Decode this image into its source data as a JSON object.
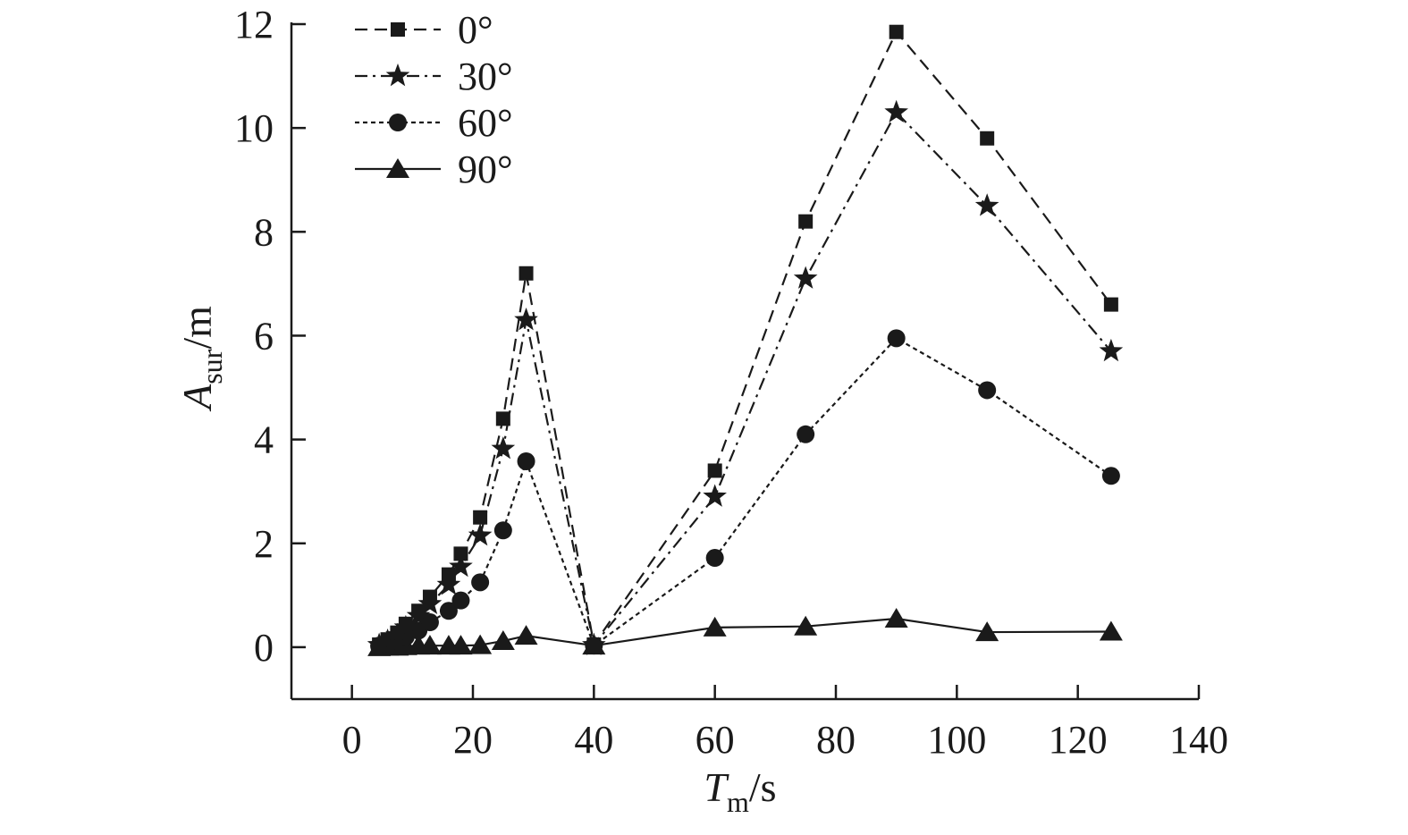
{
  "chart_data": {
    "type": "line",
    "xlabel": {
      "main": "T",
      "sub": "m",
      "unit": "/s"
    },
    "ylabel": {
      "main": "A",
      "sub": "sur",
      "unit": "/m"
    },
    "xlim": [
      -10,
      140
    ],
    "ylim": [
      -1,
      12
    ],
    "xticks": [
      0,
      20,
      40,
      60,
      80,
      100,
      120,
      140
    ],
    "yticks": [
      0,
      2,
      4,
      6,
      8,
      10,
      12
    ],
    "grid": false,
    "legend_position": "top-left",
    "colors": {
      "ink": "#1a1a1a",
      "background": "#ffffff"
    },
    "series": [
      {
        "name": "0°",
        "marker": "square",
        "dash": "dashed",
        "x": [
          4.5,
          5.9,
          7.5,
          8.9,
          11.0,
          12.9,
          16.0,
          18.0,
          21.2,
          25.0,
          28.8,
          40.0,
          60.0,
          75.0,
          90.0,
          105.0,
          125.5
        ],
        "y": [
          0.05,
          0.15,
          0.28,
          0.45,
          0.7,
          0.97,
          1.4,
          1.8,
          2.5,
          4.4,
          7.2,
          0.05,
          3.4,
          8.2,
          11.85,
          9.8,
          6.6
        ]
      },
      {
        "name": "30°",
        "marker": "star",
        "dash": "dashdot",
        "x": [
          4.5,
          5.9,
          7.5,
          8.9,
          11.0,
          12.9,
          16.0,
          18.0,
          21.2,
          25.0,
          28.8,
          40.0,
          60.0,
          75.0,
          90.0,
          105.0,
          125.5
        ],
        "y": [
          0.04,
          0.12,
          0.23,
          0.38,
          0.6,
          0.83,
          1.2,
          1.55,
          2.15,
          3.82,
          6.3,
          0.04,
          2.9,
          7.1,
          10.3,
          8.5,
          5.7
        ]
      },
      {
        "name": "60°",
        "marker": "circle",
        "dash": "dotted",
        "x": [
          4.5,
          5.9,
          7.5,
          8.9,
          11.0,
          12.9,
          16.0,
          18.0,
          21.2,
          25.0,
          28.8,
          40.0,
          60.0,
          75.0,
          90.0,
          105.0,
          125.5
        ],
        "y": [
          0.02,
          0.07,
          0.12,
          0.2,
          0.32,
          0.48,
          0.7,
          0.9,
          1.25,
          2.25,
          3.58,
          0.03,
          1.72,
          4.1,
          5.95,
          4.95,
          3.3
        ]
      },
      {
        "name": "90°",
        "marker": "triangle",
        "dash": "solid",
        "x": [
          4.5,
          5.9,
          7.5,
          8.9,
          11.0,
          12.9,
          16.0,
          18.0,
          21.2,
          25.0,
          28.8,
          40.0,
          60.0,
          75.0,
          90.0,
          105.0,
          125.5
        ],
        "y": [
          0.0,
          0.01,
          0.01,
          0.02,
          0.03,
          0.03,
          0.03,
          0.03,
          0.04,
          0.12,
          0.22,
          0.03,
          0.38,
          0.4,
          0.55,
          0.29,
          0.3
        ]
      }
    ]
  }
}
